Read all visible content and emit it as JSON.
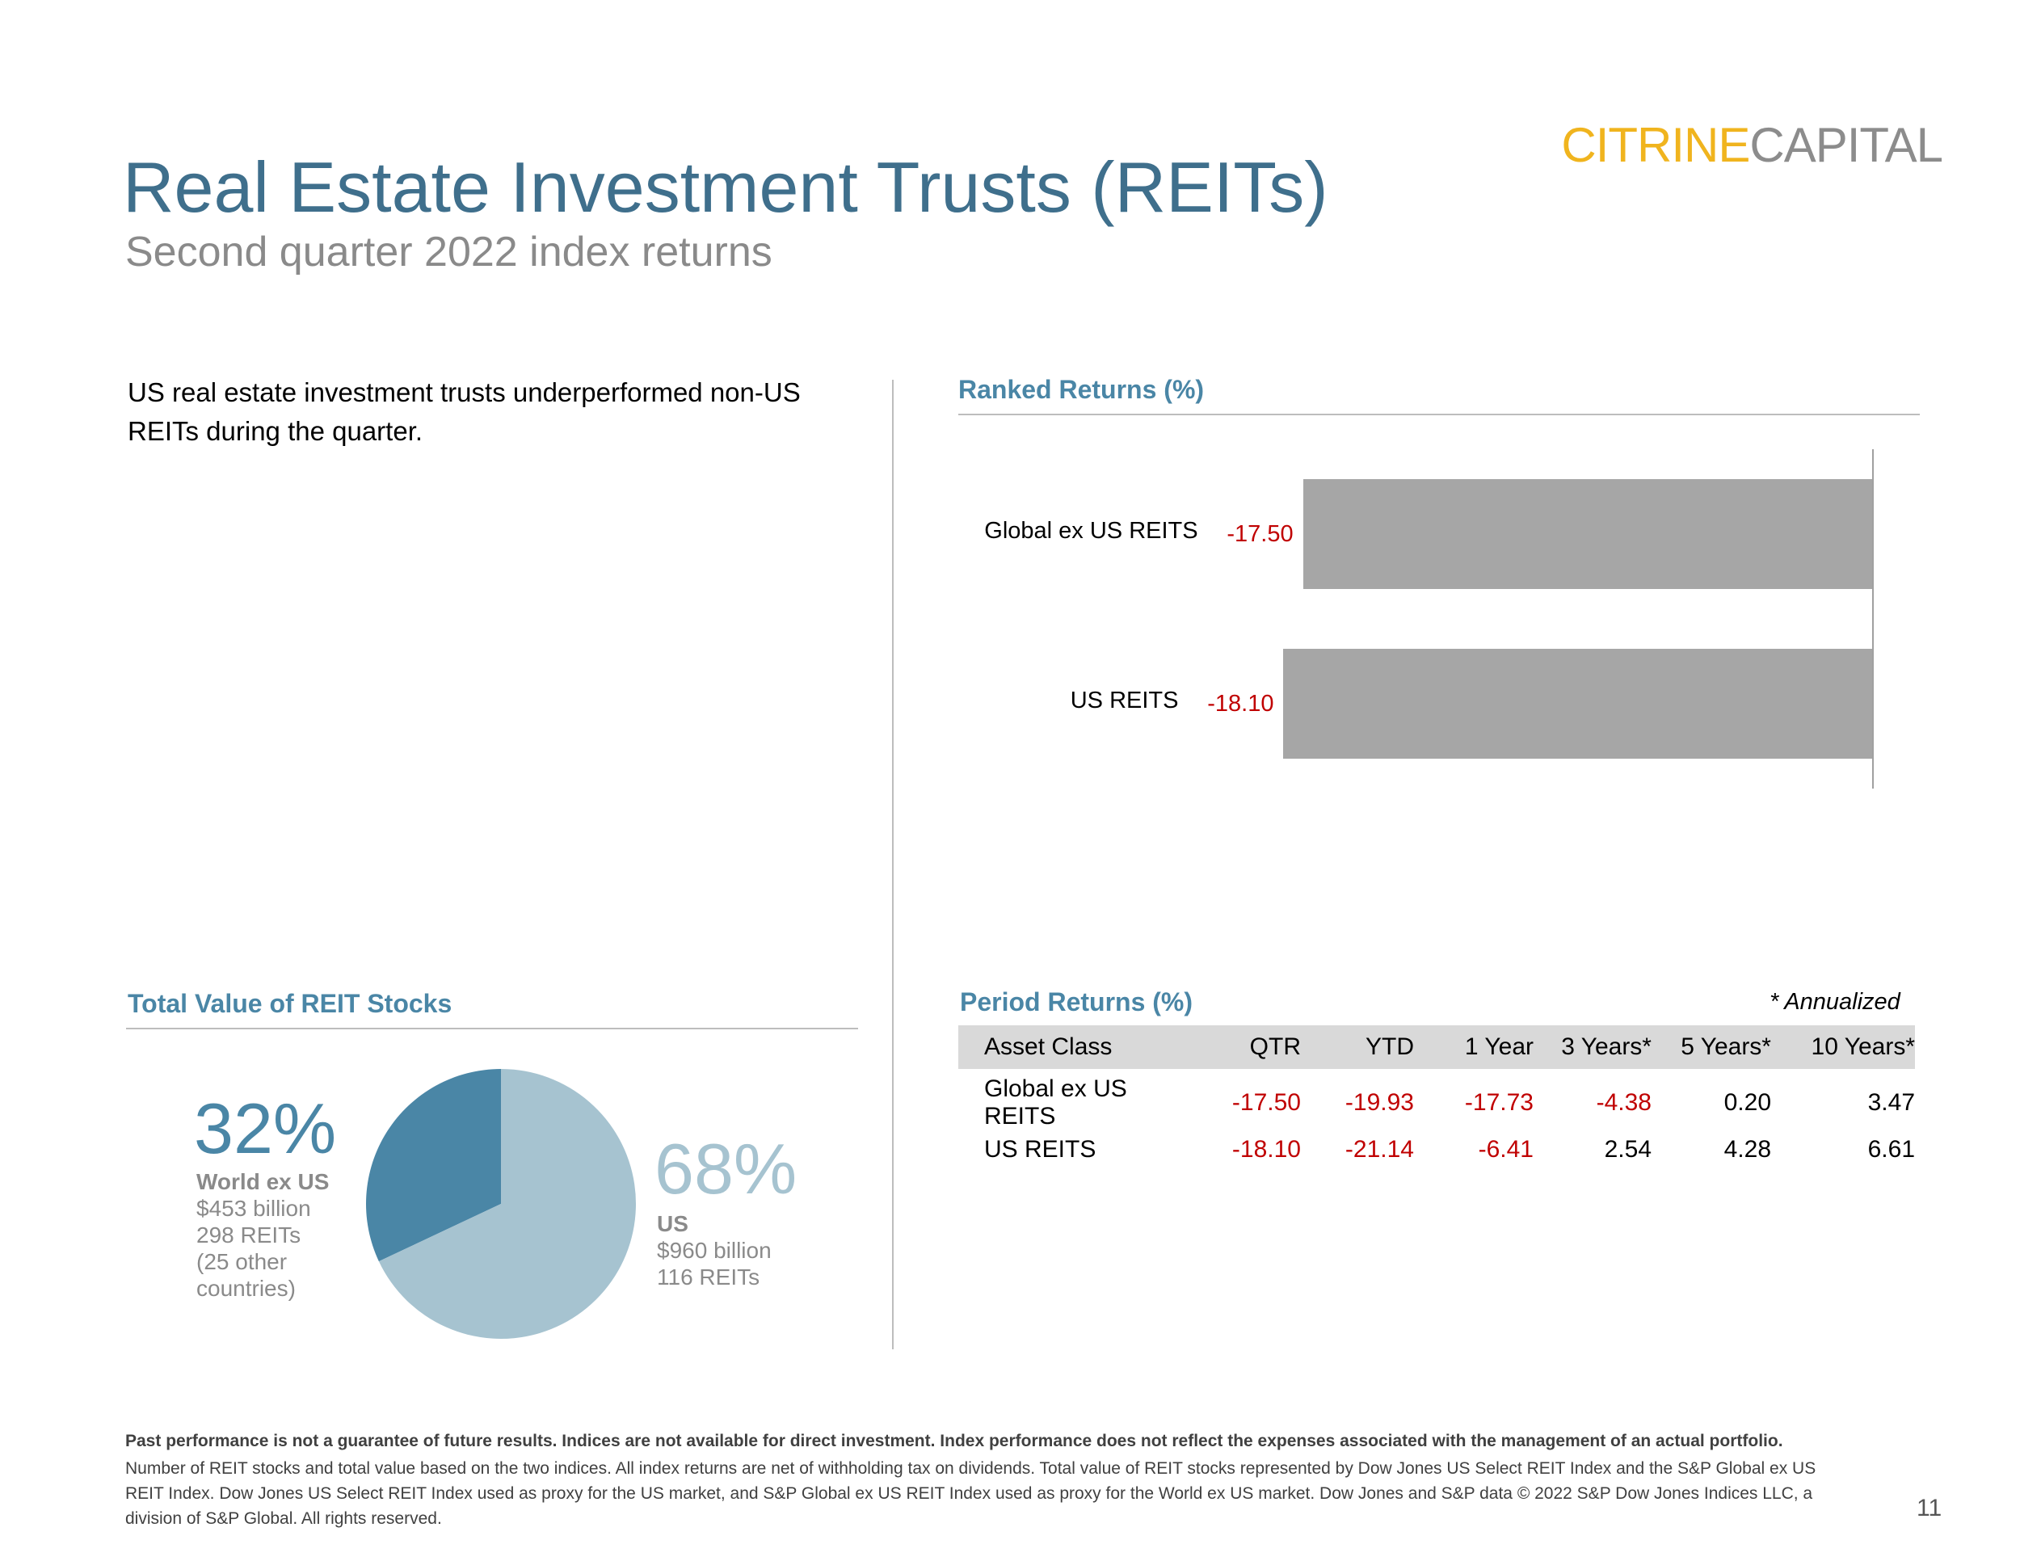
{
  "logo": {
    "part1": "CITRINE",
    "part2": "CAPITAL"
  },
  "header": {
    "title": "Real Estate Investment Trusts (REITs)",
    "subtitle": "Second quarter 2022 index returns"
  },
  "intro_text": "US real estate investment trusts underperformed non-US REITs during the quarter.",
  "ranked": {
    "title": "Ranked Returns (%)",
    "bars": [
      {
        "label": "Global ex US REITS",
        "value": "-17.50"
      },
      {
        "label": "US REITS",
        "value": "-18.10"
      }
    ]
  },
  "total_value": {
    "title": "Total Value of REIT Stocks",
    "world": {
      "pct": "32%",
      "name": "World ex US",
      "value": "$453 billion",
      "count": "298 REITs",
      "note": "(25 other countries)"
    },
    "us": {
      "pct": "68%",
      "name": "US",
      "value": "$960 billion",
      "count": "116 REITs"
    }
  },
  "period": {
    "title": "Period Returns (%)",
    "annotation": "* Annualized",
    "headers": [
      "Asset Class",
      "QTR",
      "YTD",
      "1 Year",
      "3 Years*",
      "5 Years*",
      "10 Years*"
    ],
    "rows": [
      [
        "Global ex US REITS",
        "-17.50",
        "-19.93",
        "-17.73",
        "-4.38",
        "0.20",
        "3.47"
      ],
      [
        "US REITS",
        "-18.10",
        "-21.14",
        "-6.41",
        "2.54",
        "4.28",
        "6.61"
      ]
    ]
  },
  "chart_data": [
    {
      "type": "bar",
      "orientation": "horizontal",
      "title": "Ranked Returns (%)",
      "categories": [
        "Global ex US REITS",
        "US REITS"
      ],
      "values": [
        -17.5,
        -18.1
      ],
      "xlim": [
        -20,
        0
      ],
      "bar_color": "#a6a6a6",
      "value_label_color": "#c00000"
    },
    {
      "type": "pie",
      "title": "Total Value of REIT Stocks",
      "labels": [
        "World ex US",
        "US"
      ],
      "values": [
        32,
        68
      ],
      "colors": [
        "#4a86a6",
        "#a6c3d0"
      ]
    },
    {
      "type": "table",
      "title": "Period Returns (%)",
      "columns": [
        "Asset Class",
        "QTR",
        "YTD",
        "1 Year",
        "3 Years*",
        "5 Years*",
        "10 Years*"
      ],
      "rows": [
        [
          "Global ex US REITS",
          -17.5,
          -19.93,
          -17.73,
          -4.38,
          0.2,
          3.47
        ],
        [
          "US REITS",
          -18.1,
          -21.14,
          -6.41,
          2.54,
          4.28,
          6.61
        ]
      ]
    }
  ],
  "footer": {
    "bold": "Past performance is not a guarantee of future results. Indices are not available for direct investment. Index performance does not reflect the expenses associated with the management of an actual portfolio.",
    "text": "Number of REIT stocks and total value based on the two indices. All index returns are net of withholding tax on dividends. Total value of REIT stocks represented by Dow Jones US Select REIT Index and the S&P Global ex US REIT Index. Dow Jones US Select REIT Index used as proxy for the US market, and S&P Global ex US REIT Index used as proxy for the World ex US market. Dow Jones and S&P data © 2022 S&P Dow Jones Indices LLC, a division of S&P Global. All rights reserved.",
    "page_number": "11"
  }
}
